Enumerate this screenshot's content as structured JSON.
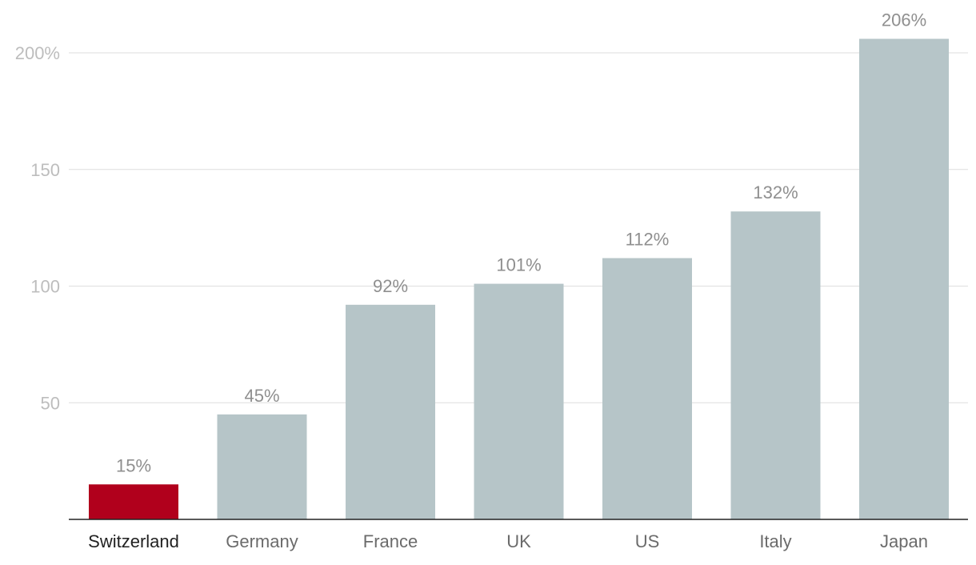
{
  "chart_data": {
    "type": "bar",
    "title": "",
    "xlabel": "",
    "ylabel": "",
    "categories": [
      "Switzerland",
      "Germany",
      "France",
      "UK",
      "US",
      "Italy",
      "Japan"
    ],
    "values": [
      15,
      45,
      92,
      101,
      112,
      132,
      206
    ],
    "value_labels": [
      "15%",
      "45%",
      "92%",
      "101%",
      "112%",
      "132%",
      "206%"
    ],
    "highlight_category": "Switzerland",
    "ylim": [
      0,
      200
    ],
    "yticks": [
      50,
      100,
      150,
      200
    ],
    "ytick_labels": [
      "50",
      "100",
      "150",
      "200%"
    ],
    "grid": true,
    "colors": {
      "bar": "#b6c5c8",
      "highlight": "#b1001c",
      "grid": "#dedede",
      "axis": "#222222"
    }
  }
}
